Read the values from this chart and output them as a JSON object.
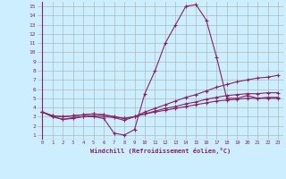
{
  "xlabel": "Windchill (Refroidissement éolien,°C)",
  "bg_color": "#cceeff",
  "grid_color": "#aabbbb",
  "line_color": "#882266",
  "xlim": [
    -0.5,
    23.5
  ],
  "ylim": [
    0.5,
    15.5
  ],
  "xticks": [
    0,
    1,
    2,
    3,
    4,
    5,
    6,
    7,
    8,
    9,
    10,
    11,
    12,
    13,
    14,
    15,
    16,
    17,
    18,
    19,
    20,
    21,
    22,
    23
  ],
  "yticks": [
    1,
    2,
    3,
    4,
    5,
    6,
    7,
    8,
    9,
    10,
    11,
    12,
    13,
    14,
    15
  ],
  "series": [
    [
      3.5,
      3.0,
      2.7,
      2.9,
      3.0,
      3.0,
      2.8,
      1.2,
      1.0,
      1.6,
      5.5,
      8.0,
      11.0,
      13.0,
      15.0,
      15.2,
      13.5,
      9.5,
      5.0,
      5.0,
      5.3,
      5.0,
      5.0,
      5.0
    ],
    [
      3.5,
      3.0,
      2.7,
      2.8,
      3.0,
      3.1,
      3.0,
      2.9,
      2.6,
      3.0,
      3.5,
      3.9,
      4.3,
      4.7,
      5.1,
      5.4,
      5.8,
      6.2,
      6.5,
      6.8,
      7.0,
      7.2,
      7.3,
      7.5
    ],
    [
      3.5,
      3.1,
      3.0,
      3.1,
      3.2,
      3.3,
      3.2,
      3.0,
      2.8,
      3.0,
      3.3,
      3.6,
      3.9,
      4.1,
      4.4,
      4.6,
      4.9,
      5.1,
      5.3,
      5.4,
      5.5,
      5.5,
      5.6,
      5.6
    ],
    [
      3.5,
      3.1,
      3.0,
      3.1,
      3.2,
      3.3,
      3.2,
      3.0,
      2.8,
      3.0,
      3.3,
      3.5,
      3.7,
      3.9,
      4.1,
      4.3,
      4.5,
      4.7,
      4.8,
      4.9,
      5.0,
      5.0,
      5.1,
      5.1
    ]
  ]
}
